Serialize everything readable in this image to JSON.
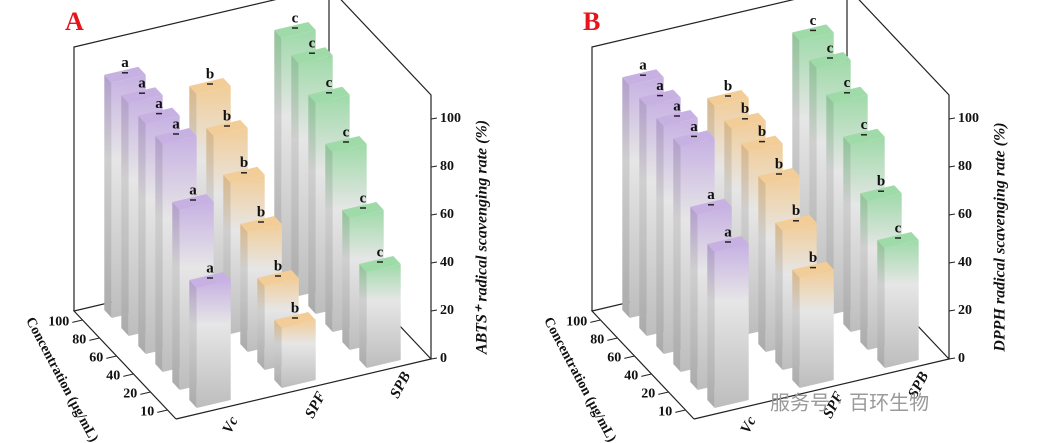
{
  "chart_data": [
    {
      "type": "bar3d",
      "title": "A",
      "zlabel": "ABTS⁺ radical scavenging rate (%)",
      "ylabel": "Concentration (μg/mL)",
      "y_categories": [
        10,
        20,
        40,
        60,
        80,
        100
      ],
      "series": [
        {
          "name": "Vc",
          "color": "#c7b1e3",
          "values": [
            50,
            75,
            95,
            96,
            97,
            98
          ],
          "letters": [
            "a",
            "a",
            "a",
            "a",
            "a",
            "a"
          ]
        },
        {
          "name": "SPF",
          "color": "#f2cd98",
          "values": [
            25,
            35,
            50,
            63,
            75,
            85
          ],
          "letters": [
            "b",
            "b",
            "b",
            "b",
            "b",
            "b"
          ]
        },
        {
          "name": "SPB",
          "color": "#9fdaa9",
          "values": [
            40,
            55,
            75,
            88,
            97,
            100
          ],
          "letters": [
            "c",
            "c",
            "c",
            "c",
            "c",
            "c"
          ]
        }
      ],
      "zlim": [
        0,
        110
      ],
      "zticks": [
        0,
        20,
        40,
        60,
        80,
        100
      ]
    },
    {
      "type": "bar3d",
      "title": "B",
      "zlabel": "DPPH radical scavenging rate (%)",
      "ylabel": "Concentration (μg/mL)",
      "y_categories": [
        10,
        20,
        40,
        60,
        80,
        100
      ],
      "series": [
        {
          "name": "Vc",
          "color": "#c7b1e3",
          "values": [
            65,
            73,
            94,
            95,
            96,
            97
          ],
          "letters": [
            "a",
            "a",
            "a",
            "a",
            "a",
            "a"
          ]
        },
        {
          "name": "SPF",
          "color": "#f2cd98",
          "values": [
            46,
            58,
            70,
            76,
            78,
            80
          ],
          "letters": [
            "b",
            "b",
            "b",
            "b",
            "b",
            "b"
          ]
        },
        {
          "name": "SPB",
          "color": "#9fdaa9",
          "values": [
            50,
            62,
            78,
            88,
            95,
            99
          ],
          "letters": [
            "c",
            "b",
            "c",
            "c",
            "c",
            "c"
          ]
        }
      ],
      "zlim": [
        0,
        110
      ],
      "zticks": [
        0,
        20,
        40,
        60,
        80,
        100
      ]
    }
  ],
  "watermark": "服务号 · 百环生物"
}
